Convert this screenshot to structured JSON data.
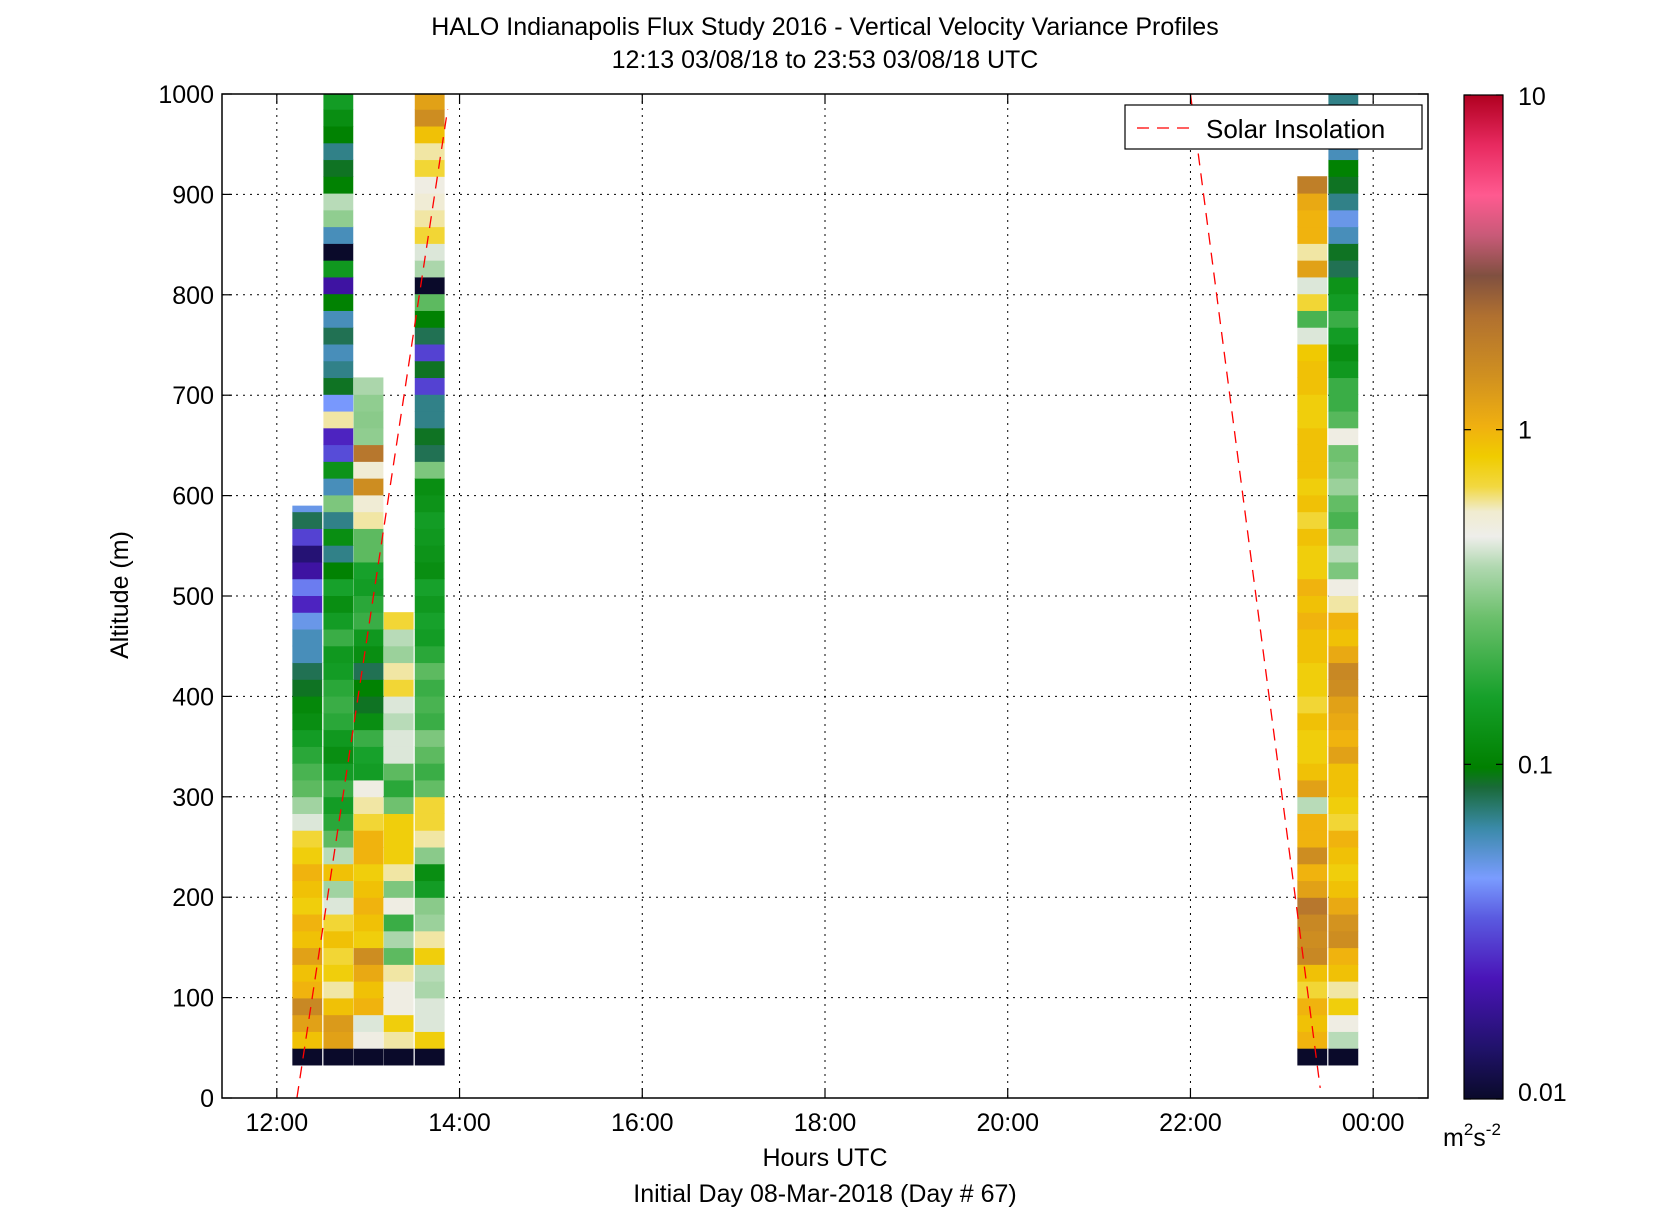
{
  "chart_data": {
    "type": "heatmap",
    "title": "HALO Indianapolis Flux Study 2016 - Vertical Velocity Variance Profiles",
    "subtitle": "12:13 03/08/18 to 23:53 03/08/18  UTC",
    "xlabel": "Hours UTC",
    "xlabel2": "Initial Day 08-Mar-2018 (Day # 67)",
    "ylabel": "Altitude (m)",
    "xlim": [
      11.4,
      24.6
    ],
    "ylim": [
      0,
      1000
    ],
    "x_ticks": [
      12,
      14,
      16,
      18,
      20,
      22,
      24
    ],
    "x_tick_labels": [
      "12:00",
      "14:00",
      "16:00",
      "18:00",
      "20:00",
      "22:00",
      "00:00"
    ],
    "y_ticks": [
      0,
      100,
      200,
      300,
      400,
      500,
      600,
      700,
      800,
      900,
      1000
    ],
    "y_tick_labels": [
      "0",
      "100",
      "200",
      "300",
      "400",
      "500",
      "600",
      "700",
      "800",
      "900",
      "1000"
    ],
    "grid": true,
    "legend": {
      "entries": [
        "Solar Insolation"
      ],
      "placement": "top-right"
    },
    "colorbar": {
      "scale": "log",
      "range": [
        0.01,
        10
      ],
      "tick_values": [
        0.01,
        0.1,
        1,
        10
      ],
      "tick_labels": [
        "0.01",
        "0.1",
        "1",
        "10"
      ],
      "units_base": "m",
      "units_sup1": "2",
      "units_mid": "s",
      "units_sup2": "-2"
    },
    "cell_height_m": 16.7,
    "columns": [
      {
        "time": 12.33,
        "width": 0.32,
        "z_start": 33,
        "z_end": 590,
        "values": [
          0.01,
          0.9,
          1.2,
          1.6,
          1.0,
          0.9,
          1.2,
          0.9,
          1.0,
          0.8,
          0.9,
          1.0,
          0.8,
          0.7,
          0.45,
          0.36,
          0.25,
          0.22,
          0.18,
          0.15,
          0.12,
          0.11,
          0.09,
          0.08,
          0.06,
          0.06,
          0.05,
          0.025,
          0.04,
          0.02,
          0.015,
          0.03,
          0.08,
          0.05,
          0.08,
          0.6
        ]
      },
      {
        "time": 12.67,
        "width": 0.32,
        "z_start": 33,
        "z_end": 1000,
        "values": [
          0.01,
          1.2,
          1.3,
          0.9,
          0.6,
          0.8,
          0.7,
          0.9,
          0.7,
          0.45,
          0.36,
          0.9,
          0.4,
          0.25,
          0.18,
          0.15,
          0.2,
          0.15,
          0.12,
          0.14,
          0.18,
          0.2,
          0.18,
          0.15,
          0.14,
          0.2,
          0.15,
          0.12,
          0.16,
          0.1,
          0.07,
          0.12,
          0.07,
          0.3,
          0.06,
          0.13,
          0.032,
          0.025,
          0.6,
          0.045,
          0.09,
          0.07,
          0.06,
          0.08,
          0.06,
          0.1,
          0.02,
          0.14,
          0.01,
          0.06,
          0.33,
          0.4,
          0.1,
          0.09,
          0.07,
          0.1,
          0.12,
          0.15,
          0.12
        ]
      },
      {
        "time": 13.0,
        "width": 0.32,
        "z_start": 33,
        "z_end": 720,
        "values": [
          0.01,
          0.5,
          0.45,
          1.0,
          0.9,
          1.1,
          1.5,
          0.8,
          0.9,
          1.0,
          0.9,
          0.8,
          1.0,
          1.0,
          0.7,
          0.6,
          0.5,
          0.15,
          0.16,
          0.2,
          0.12,
          0.09,
          0.1,
          0.08,
          0.12,
          0.14,
          0.2,
          0.18,
          0.15,
          0.16,
          0.25,
          0.25,
          0.6,
          0.55,
          1.5,
          0.55,
          2.0,
          0.33,
          0.32,
          0.33,
          0.38
        ]
      },
      {
        "time": 13.33,
        "width": 0.32,
        "z_start": 33,
        "z_end": 505,
        "values": [
          0.01,
          0.6,
          0.8,
          0.5,
          0.5,
          0.6,
          0.25,
          0.38,
          0.2,
          0.5,
          0.3,
          0.6,
          0.8,
          0.8,
          0.8,
          0.28,
          0.18,
          0.25,
          0.45,
          0.45,
          0.4,
          0.45,
          0.7,
          0.6,
          0.35,
          0.4,
          0.7
        ]
      },
      {
        "time": 13.67,
        "width": 0.32,
        "z_start": 33,
        "z_end": 1000,
        "values": [
          0.01,
          0.8,
          0.45,
          0.45,
          0.38,
          0.4,
          0.8,
          0.6,
          0.35,
          0.32,
          0.15,
          0.12,
          0.32,
          0.6,
          0.7,
          0.7,
          0.26,
          0.2,
          0.25,
          0.3,
          0.2,
          0.22,
          0.2,
          0.25,
          0.18,
          0.15,
          0.16,
          0.14,
          0.16,
          0.12,
          0.13,
          0.14,
          0.15,
          0.13,
          0.12,
          0.3,
          0.08,
          0.09,
          0.07,
          0.07,
          0.03,
          0.09,
          0.03,
          0.08,
          0.1,
          0.25,
          0.01,
          0.38,
          0.45,
          0.7,
          0.6,
          0.55,
          0.5,
          0.7,
          0.6,
          0.9,
          1.5,
          1.2,
          0.6
        ]
      },
      {
        "time": 23.33,
        "width": 0.32,
        "z_start": 33,
        "z_end": 955,
        "values": [
          0.01,
          1.0,
          0.9,
          1.0,
          0.7,
          0.9,
          1.6,
          1.5,
          1.6,
          2.0,
          1.2,
          1.0,
          1.5,
          1.0,
          1.0,
          0.4,
          1.2,
          0.9,
          0.8,
          0.8,
          0.9,
          0.7,
          0.8,
          0.8,
          0.9,
          0.9,
          1.0,
          0.9,
          1.0,
          0.8,
          0.8,
          0.9,
          0.7,
          0.9,
          0.8,
          0.9,
          0.9,
          0.9,
          0.8,
          0.8,
          0.9,
          0.9,
          0.85,
          0.45,
          0.22,
          0.7,
          0.45,
          1.2,
          0.6,
          1.0,
          1.0,
          1.1,
          1.8
        ]
      },
      {
        "time": 23.67,
        "width": 0.32,
        "z_start": 33,
        "z_end": 1000,
        "values": [
          0.01,
          0.4,
          0.5,
          0.8,
          0.6,
          0.9,
          1.0,
          1.5,
          1.4,
          1.1,
          0.9,
          0.8,
          0.9,
          1.0,
          0.7,
          0.8,
          0.9,
          0.9,
          1.2,
          1.0,
          1.1,
          1.2,
          1.5,
          1.6,
          1.1,
          0.9,
          1.0,
          0.6,
          0.5,
          0.3,
          0.4,
          0.3,
          0.22,
          0.26,
          0.35,
          0.3,
          0.28,
          0.5,
          0.24,
          0.2,
          0.2,
          0.14,
          0.12,
          0.15,
          0.2,
          0.15,
          0.13,
          0.08,
          0.09,
          0.06,
          0.05,
          0.07,
          0.09,
          0.1,
          0.06,
          0.07,
          0.12,
          0.07,
          0.15,
          0.25,
          0.35
        ]
      }
    ],
    "solar_insolation": [
      {
        "x": [
          12.22,
          13.87
        ],
        "y": [
          0,
          985
        ]
      },
      {
        "x": [
          22.0,
          23.42
        ],
        "y": [
          1000,
          10
        ]
      }
    ]
  }
}
